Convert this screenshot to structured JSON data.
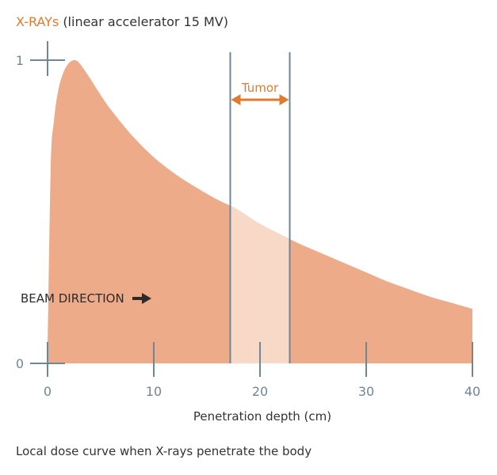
{
  "header": {
    "title_accent": "X-RAYs",
    "title_rest": "(linear accelerator 15 MV)"
  },
  "caption": "Local dose curve when X-rays penetrate the body",
  "beam_label": "BEAM DIRECTION",
  "colors": {
    "accent": "#e07a2e",
    "curve_fill": "#eeab8a",
    "tumor_fill": "#f8d8c6",
    "axis": "#6f8794"
  },
  "chart_data": {
    "type": "area",
    "xlabel": "Penetration depth (cm)",
    "ylabel": "",
    "xlim": [
      0,
      40
    ],
    "ylim": [
      0,
      1
    ],
    "x_ticks": [
      "0",
      "10",
      "20",
      "30",
      "40"
    ],
    "y_ticks": [
      "0",
      "1"
    ],
    "grid": false,
    "series": [
      {
        "x": [
          0,
          0.3,
          0.6,
          1,
          1.5,
          2,
          2.5,
          3,
          4,
          5,
          6,
          8,
          10,
          12,
          14,
          16,
          17.2,
          18,
          20,
          22.8,
          24,
          26,
          28,
          30,
          32,
          34,
          36,
          38,
          40
        ],
        "y": [
          0.05,
          0.65,
          0.8,
          0.9,
          0.96,
          0.99,
          1.0,
          0.99,
          0.94,
          0.885,
          0.835,
          0.75,
          0.68,
          0.625,
          0.58,
          0.54,
          0.52,
          0.505,
          0.46,
          0.41,
          0.39,
          0.36,
          0.33,
          0.3,
          0.27,
          0.245,
          0.22,
          0.2,
          0.18
        ]
      }
    ],
    "annotations": {
      "tumor_label": "Tumor",
      "tumor_range": [
        17.2,
        22.8
      ]
    }
  }
}
